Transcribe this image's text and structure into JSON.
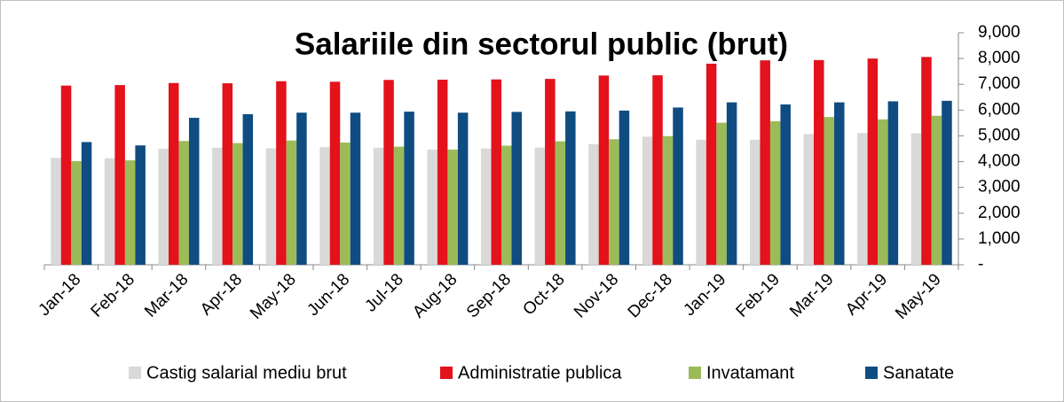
{
  "chart_data": {
    "type": "bar",
    "title": "Salariile din sectorul public (brut)",
    "categories": [
      "Jan-18",
      "Feb-18",
      "Mar-18",
      "Apr-18",
      "May-18",
      "Jun-18",
      "Jul-18",
      "Aug-18",
      "Sep-18",
      "Oct-18",
      "Nov-18",
      "Dec-18",
      "Jan-19",
      "Feb-19",
      "Mar-19",
      "Apr-19",
      "May-19"
    ],
    "series": [
      {
        "name": "Castig salarial mediu brut",
        "color": "#d9d9d9",
        "values": [
          4150,
          4130,
          4500,
          4540,
          4520,
          4560,
          4540,
          4470,
          4510,
          4550,
          4680,
          4970,
          4850,
          4850,
          5070,
          5110,
          5100
        ]
      },
      {
        "name": "Administratie publica",
        "color": "#e3121b",
        "values": [
          6950,
          6970,
          7050,
          7040,
          7120,
          7100,
          7170,
          7180,
          7190,
          7210,
          7340,
          7350,
          7800,
          7930,
          7940,
          8000,
          8060
        ]
      },
      {
        "name": "Invatamant",
        "color": "#9bbb59",
        "values": [
          4020,
          4050,
          4800,
          4720,
          4820,
          4740,
          4580,
          4470,
          4620,
          4790,
          4870,
          4990,
          5510,
          5570,
          5730,
          5640,
          5780
        ]
      },
      {
        "name": "Sanatate",
        "color": "#0f4c81",
        "values": [
          4760,
          4630,
          5700,
          5840,
          5900,
          5900,
          5940,
          5900,
          5930,
          5950,
          5980,
          6100,
          6300,
          6220,
          6300,
          6340,
          6360
        ]
      }
    ],
    "ylim": [
      0,
      9000
    ],
    "yticks": [
      {
        "value": 0,
        "label": "-"
      },
      {
        "value": 1000,
        "label": "1,000"
      },
      {
        "value": 2000,
        "label": "2,000"
      },
      {
        "value": 3000,
        "label": "3,000"
      },
      {
        "value": 4000,
        "label": "4,000"
      },
      {
        "value": 5000,
        "label": "5,000"
      },
      {
        "value": 6000,
        "label": "6,000"
      },
      {
        "value": 7000,
        "label": "7,000"
      },
      {
        "value": 8000,
        "label": "8,000"
      },
      {
        "value": 9000,
        "label": "9,000"
      }
    ],
    "grid": false,
    "legend": "bottom"
  }
}
